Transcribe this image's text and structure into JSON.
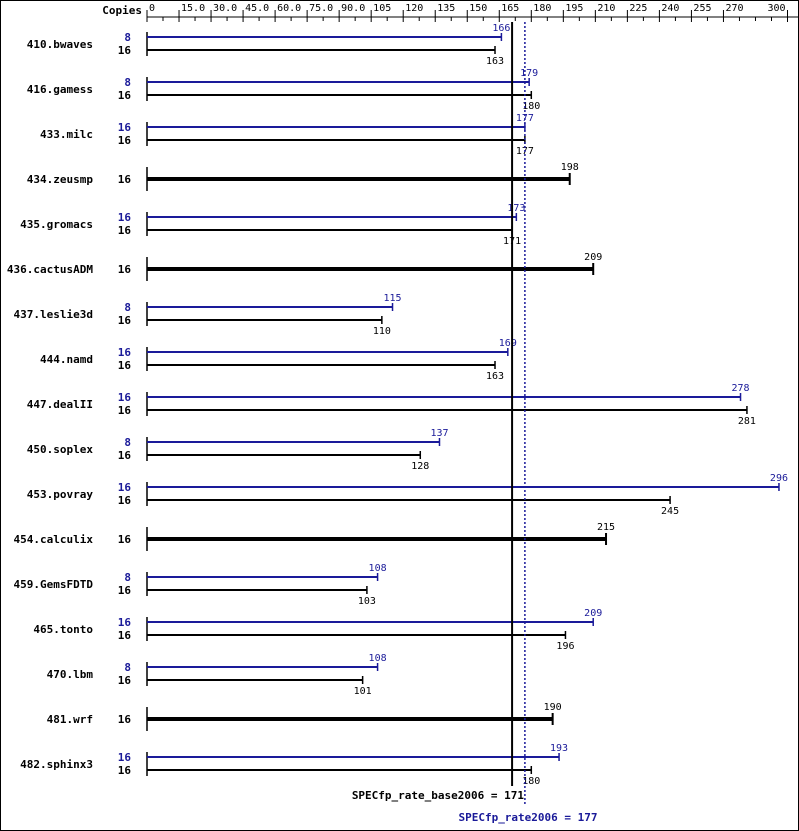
{
  "chart_data": {
    "type": "bar",
    "title": "",
    "copies_header": "Copies",
    "x_ticks": [
      "0",
      "15.0",
      "30.0",
      "45.0",
      "60.0",
      "75.0",
      "90.0",
      "105",
      "120",
      "135",
      "150",
      "165",
      "180",
      "195",
      "210",
      "225",
      "240",
      "255",
      "270",
      "300"
    ],
    "x_tick_values": [
      0,
      15,
      30,
      45,
      60,
      75,
      90,
      105,
      120,
      135,
      150,
      165,
      180,
      195,
      210,
      225,
      240,
      255,
      270,
      300
    ],
    "xlim": [
      0,
      300
    ],
    "colors": {
      "peak": "#1a1a99",
      "base": "#000000"
    },
    "series": [
      {
        "name": "SPECfp_rate_base2006",
        "color": "#000000"
      },
      {
        "name": "SPECfp_rate2006",
        "color": "#1a1a99"
      }
    ],
    "benchmarks": [
      {
        "name": "410.bwaves",
        "peak": {
          "copies": "8",
          "value": 166,
          "label": "166"
        },
        "base": {
          "copies": "16",
          "value": 163,
          "label": "163"
        }
      },
      {
        "name": "416.gamess",
        "peak": {
          "copies": "8",
          "value": 179,
          "label": "179"
        },
        "base": {
          "copies": "16",
          "value": 180,
          "label": "180"
        }
      },
      {
        "name": "433.milc",
        "peak": {
          "copies": "16",
          "value": 177,
          "label": "177"
        },
        "base": {
          "copies": "16",
          "value": 177,
          "label": "177"
        }
      },
      {
        "name": "434.zeusmp",
        "combined": true,
        "base": {
          "copies": "16",
          "value": 198,
          "label": "198"
        }
      },
      {
        "name": "435.gromacs",
        "peak": {
          "copies": "16",
          "value": 173,
          "label": "173"
        },
        "base": {
          "copies": "16",
          "value": 171,
          "label": "171"
        }
      },
      {
        "name": "436.cactusADM",
        "combined": true,
        "base": {
          "copies": "16",
          "value": 209,
          "label": "209"
        }
      },
      {
        "name": "437.leslie3d",
        "peak": {
          "copies": "8",
          "value": 115,
          "label": "115"
        },
        "base": {
          "copies": "16",
          "value": 110,
          "label": "110"
        }
      },
      {
        "name": "444.namd",
        "peak": {
          "copies": "16",
          "value": 169,
          "label": "169"
        },
        "base": {
          "copies": "16",
          "value": 163,
          "label": "163"
        }
      },
      {
        "name": "447.dealII",
        "peak": {
          "copies": "16",
          "value": 278,
          "label": "278"
        },
        "base": {
          "copies": "16",
          "value": 281,
          "label": "281"
        }
      },
      {
        "name": "450.soplex",
        "peak": {
          "copies": "8",
          "value": 137,
          "label": "137"
        },
        "base": {
          "copies": "16",
          "value": 128,
          "label": "128"
        }
      },
      {
        "name": "453.povray",
        "peak": {
          "copies": "16",
          "value": 296,
          "label": "296"
        },
        "base": {
          "copies": "16",
          "value": 245,
          "label": "245"
        }
      },
      {
        "name": "454.calculix",
        "combined": true,
        "base": {
          "copies": "16",
          "value": 215,
          "label": "215"
        }
      },
      {
        "name": "459.GemsFDTD",
        "peak": {
          "copies": "8",
          "value": 108,
          "label": "108"
        },
        "base": {
          "copies": "16",
          "value": 103,
          "label": "103"
        }
      },
      {
        "name": "465.tonto",
        "peak": {
          "copies": "16",
          "value": 209,
          "label": "209"
        },
        "base": {
          "copies": "16",
          "value": 196,
          "label": "196"
        }
      },
      {
        "name": "470.lbm",
        "peak": {
          "copies": "8",
          "value": 108,
          "label": "108"
        },
        "base": {
          "copies": "16",
          "value": 101,
          "label": "101"
        }
      },
      {
        "name": "481.wrf",
        "combined": true,
        "base": {
          "copies": "16",
          "value": 190,
          "label": "190"
        }
      },
      {
        "name": "482.sphinx3",
        "peak": {
          "copies": "16",
          "value": 193,
          "label": "193"
        },
        "base": {
          "copies": "16",
          "value": 180,
          "label": "180"
        }
      }
    ],
    "summary": {
      "base": {
        "label": "SPECfp_rate_base2006 = 171",
        "value": 171
      },
      "peak": {
        "label": "SPECfp_rate2006 = 177",
        "value": 177
      }
    }
  }
}
